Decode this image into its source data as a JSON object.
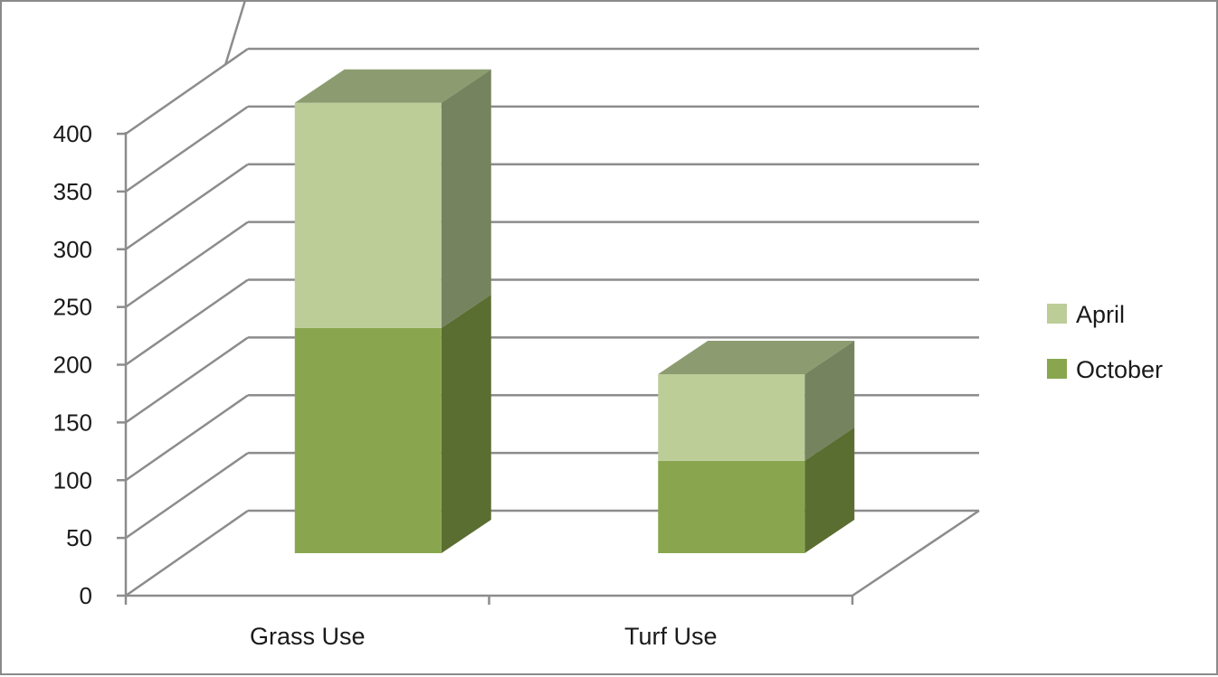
{
  "chart_data": {
    "type": "bar",
    "stacked": true,
    "three_d": true,
    "categories": [
      "Grass Use",
      "Turf Use"
    ],
    "series": [
      {
        "name": "October",
        "values": [
          195,
          80
        ],
        "color": "#89a64f",
        "side_color": "#5b6e31",
        "top_color": "#8c9c70"
      },
      {
        "name": "April",
        "values": [
          195,
          75
        ],
        "color": "#bccd98",
        "side_color": "#75835f",
        "top_color": "#8c9c70"
      }
    ],
    "yticks": [
      "0",
      "50",
      "100",
      "150",
      "200",
      "250",
      "300",
      "350",
      "400"
    ],
    "ylim": [
      0,
      400
    ],
    "grid": true,
    "legend_position": "right",
    "title": "",
    "xlabel": "",
    "ylabel": ""
  }
}
